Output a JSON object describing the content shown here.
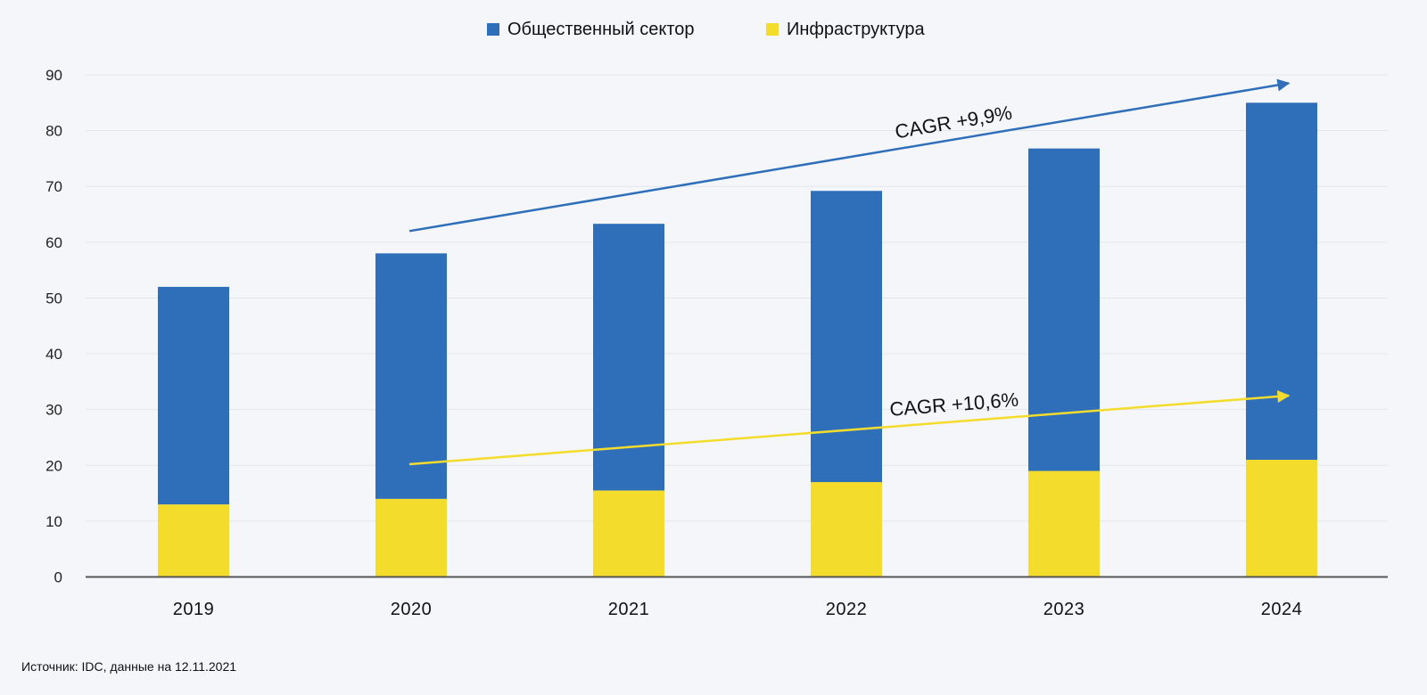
{
  "chart_data": {
    "type": "bar",
    "stacked": true,
    "categories": [
      "2019",
      "2020",
      "2021",
      "2022",
      "2023",
      "2024"
    ],
    "series": [
      {
        "name": "Инфраструктура",
        "color": "#f4dc2c",
        "values": [
          13,
          14,
          15.5,
          17,
          19,
          21
        ]
      },
      {
        "name": "Общественный сектор",
        "color": "#2f6fba",
        "values": [
          39,
          44,
          47.8,
          52.2,
          57.8,
          64
        ]
      }
    ],
    "legend_order": [
      "Общественный сектор",
      "Инфраструктура"
    ],
    "legend_position": "top-center",
    "ylim": [
      0,
      90
    ],
    "yticks": [
      0,
      10,
      20,
      30,
      40,
      50,
      60,
      70,
      80,
      90
    ],
    "grid": true,
    "annotations": [
      {
        "text": "CAGR +9,9%",
        "color": "#2f6fba",
        "from": {
          "x": "2020",
          "y": 62
        },
        "to": {
          "x": "2024",
          "y": 88.5
        }
      },
      {
        "text": "CAGR +10,6%",
        "color": "#f4dc2c",
        "from": {
          "x": "2020",
          "y": 20.2
        },
        "to": {
          "x": "2024",
          "y": 32.5
        }
      }
    ]
  },
  "source": "Источник: IDC, данные на 12.11.2021"
}
